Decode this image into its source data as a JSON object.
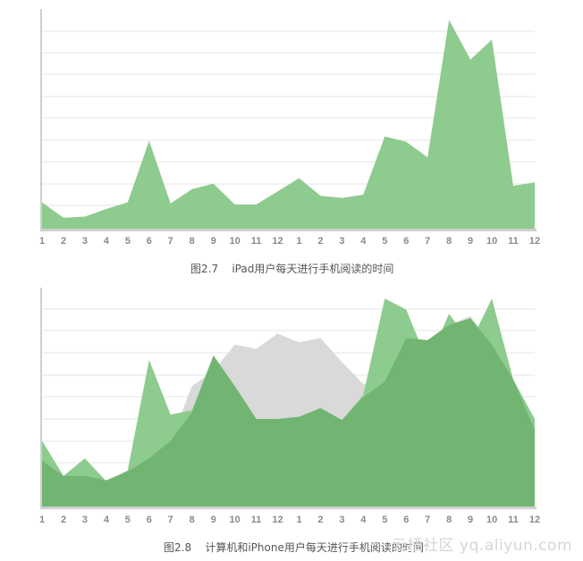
{
  "chart_data": [
    {
      "type": "area",
      "caption": "图2.7    iPad用户每天进行手机阅读的时间",
      "x_labels": [
        "1",
        "2",
        "3",
        "4",
        "5",
        "6",
        "7",
        "8",
        "9",
        "10",
        "11",
        "12",
        "1",
        "2",
        "3",
        "4",
        "5",
        "6",
        "7",
        "8",
        "9",
        "10",
        "11",
        "12"
      ],
      "ylim": [
        0,
        100
      ],
      "grid": true,
      "series": [
        {
          "color": "#8ecb8e",
          "values": [
            12,
            5,
            5.5,
            9,
            12,
            40,
            11.5,
            18,
            20.5,
            11,
            11,
            17,
            23,
            15,
            14,
            15.5,
            42,
            39.5,
            32.5,
            95,
            77,
            86,
            19.5,
            21
          ]
        }
      ]
    },
    {
      "type": "area",
      "caption": "图2.8    计算机和iPhone用户每天进行手机阅读的时间",
      "x_labels": [
        "1",
        "2",
        "3",
        "4",
        "5",
        "6",
        "7",
        "8",
        "9",
        "10",
        "11",
        "12",
        "1",
        "2",
        "3",
        "4",
        "5",
        "6",
        "7",
        "8",
        "9",
        "10",
        "11",
        "12"
      ],
      "ylim": [
        0,
        100
      ],
      "grid": true,
      "series": [
        {
          "color": "#d9d9d9",
          "values": [
            20,
            14,
            14,
            12,
            16,
            22,
            30,
            55,
            62,
            74,
            72,
            79,
            75,
            77,
            66,
            56,
            57,
            77,
            76,
            83,
            87,
            74,
            58,
            35
          ]
        },
        {
          "color": "#8ecb8e",
          "values": [
            30,
            14,
            22,
            11.5,
            16.5,
            67,
            42,
            44,
            69,
            55,
            40,
            40,
            41,
            45,
            39.5,
            51,
            95,
            90,
            66,
            88,
            75,
            95,
            58,
            40
          ]
        },
        {
          "color": "#72b572",
          "values": [
            21,
            14,
            14,
            12,
            16,
            22,
            30,
            43,
            69,
            55,
            40,
            40,
            41,
            45,
            39.5,
            50,
            57,
            77,
            76,
            83,
            86,
            74,
            58,
            35
          ]
        }
      ]
    }
  ],
  "watermark": "云栖社区 yq.aliyun.com"
}
